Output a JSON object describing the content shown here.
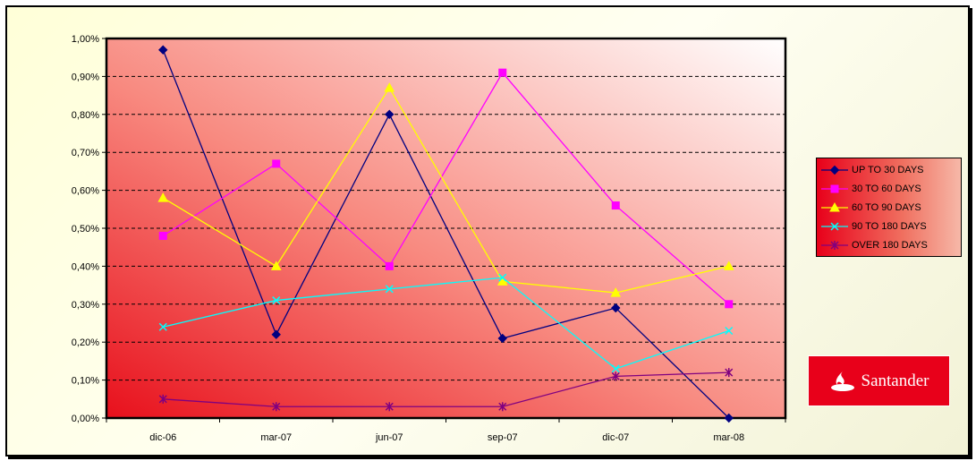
{
  "chart_data": {
    "type": "line",
    "categories": [
      "dic-06",
      "mar-07",
      "jun-07",
      "sep-07",
      "dic-07",
      "mar-08"
    ],
    "y_ticks": [
      "0,00%",
      "0,10%",
      "0,20%",
      "0,30%",
      "0,40%",
      "0,50%",
      "0,60%",
      "0,70%",
      "0,80%",
      "0,90%",
      "1,00%"
    ],
    "ylim": [
      0,
      1.0
    ],
    "y_unit": "%",
    "grid": "horizontal dashed",
    "legend_position": "right",
    "series": [
      {
        "name": "UP TO 30 DAYS",
        "values": [
          0.97,
          0.22,
          0.8,
          0.21,
          0.29,
          0.0
        ],
        "color": "#000080",
        "marker": "diamond"
      },
      {
        "name": "30 TO 60 DAYS",
        "values": [
          0.48,
          0.67,
          0.4,
          0.91,
          0.56,
          0.3
        ],
        "color": "#ff00ff",
        "marker": "square"
      },
      {
        "name": "60 TO 90 DAYS",
        "values": [
          0.58,
          0.4,
          0.87,
          0.36,
          0.33,
          0.4
        ],
        "color": "#ffff00",
        "marker": "triangle"
      },
      {
        "name": "90 TO 180 DAYS",
        "values": [
          0.24,
          0.31,
          0.34,
          0.37,
          0.13,
          0.23
        ],
        "color": "#00ffff",
        "marker": "x"
      },
      {
        "name": "OVER 180 DAYS",
        "values": [
          0.05,
          0.03,
          0.03,
          0.03,
          0.11,
          0.12
        ],
        "color": "#800080",
        "marker": "star"
      }
    ]
  },
  "logo": {
    "text": "Santander",
    "color": "#e8001a"
  }
}
